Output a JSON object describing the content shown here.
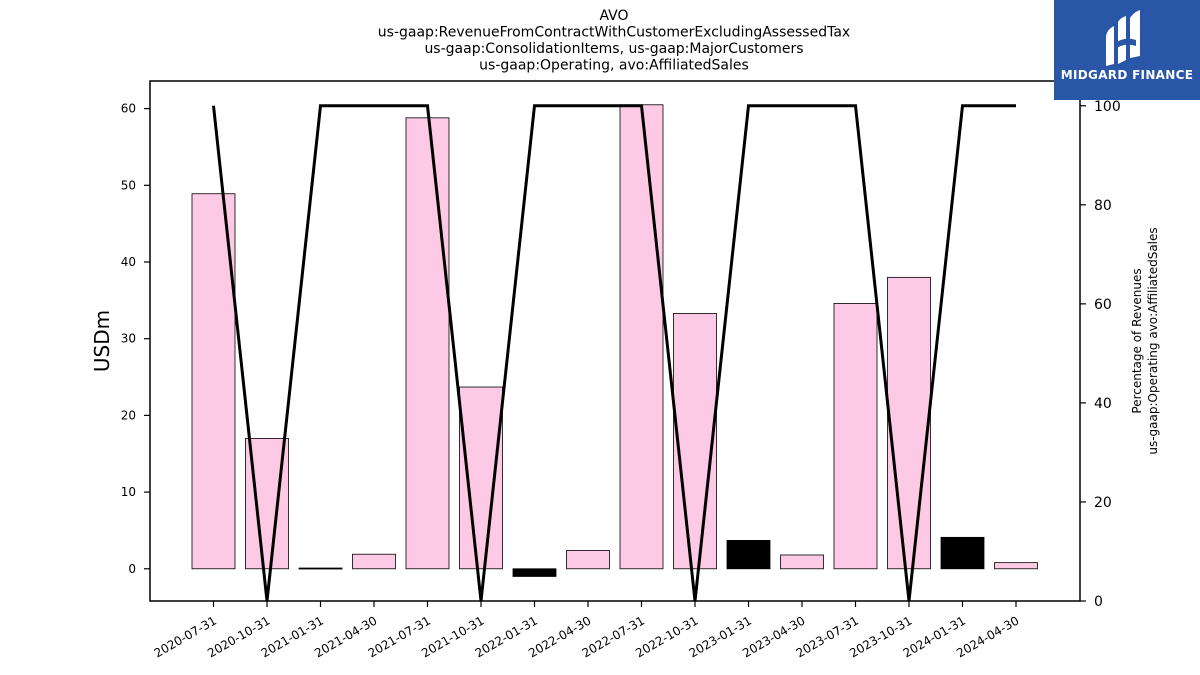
{
  "chart_data": {
    "type": "bar",
    "title_lines": [
      "AVO",
      "us-gaap:RevenueFromContractWithCustomerExcludingAssessedTax",
      "us-gaap:ConsolidationItems, us-gaap:MajorCustomers",
      "us-gaap:Operating, avo:AffiliatedSales"
    ],
    "categories": [
      "2020-07-31",
      "2020-10-31",
      "2021-01-31",
      "2021-04-30",
      "2021-07-31",
      "2021-10-31",
      "2022-01-31",
      "2022-04-30",
      "2022-07-31",
      "2022-10-31",
      "2023-01-31",
      "2023-04-30",
      "2023-07-31",
      "2023-10-31",
      "2024-01-31",
      "2024-04-30"
    ],
    "series": [
      {
        "type": "bar",
        "axis": "left",
        "values": [
          48.9,
          17.0,
          0.1,
          1.9,
          58.8,
          23.7,
          -1.0,
          2.4,
          60.5,
          33.3,
          3.7,
          1.8,
          34.6,
          38.0,
          4.1,
          0.8
        ],
        "colors": [
          "#fccae4",
          "#fccae4",
          "#000000",
          "#fccae4",
          "#fccae4",
          "#fccae4",
          "#000000",
          "#fccae4",
          "#fccae4",
          "#fccae4",
          "#000000",
          "#fccae4",
          "#fccae4",
          "#fccae4",
          "#000000",
          "#fccae4"
        ]
      },
      {
        "type": "line",
        "axis": "right",
        "values": [
          100,
          0,
          100,
          100,
          100,
          0,
          100,
          100,
          100,
          0,
          100,
          100,
          100,
          0,
          100,
          100
        ],
        "color": "#000000"
      }
    ],
    "ylabel": "USDm",
    "ylabel_right_lines": [
      "Percentage of Revenues",
      "us-gaap:Operating avo:AffiliatedSales"
    ],
    "ylim": [
      -4.2,
      63.6
    ],
    "yticks": [
      0,
      10,
      20,
      30,
      40,
      50,
      60
    ],
    "ylim_right": [
      0,
      105
    ],
    "yticks_right": [
      0,
      20,
      40,
      60,
      80,
      100
    ],
    "grid": false
  },
  "logo": {
    "text": "MIDGARD FINANCE",
    "background": "#2a56a8"
  }
}
